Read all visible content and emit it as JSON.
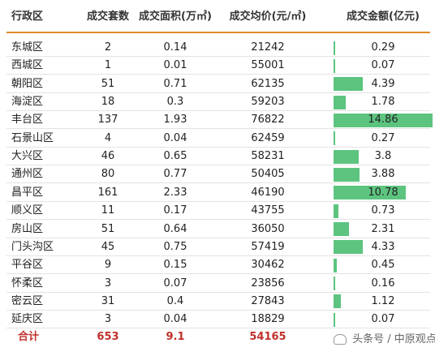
{
  "headers": {
    "district": "行政区",
    "units": "成交套数",
    "area": "成交面积(万㎡)",
    "avg_price": "成交均价(元/㎡)",
    "amount": "成交金额(亿元)"
  },
  "rows": [
    {
      "district": "东城区",
      "units": "2",
      "area": "0.14",
      "avg_price": "21242",
      "amount": "0.29",
      "amount_value": 0.29
    },
    {
      "district": "西城区",
      "units": "1",
      "area": "0.01",
      "avg_price": "55001",
      "amount": "0.07",
      "amount_value": 0.07
    },
    {
      "district": "朝阳区",
      "units": "51",
      "area": "0.71",
      "avg_price": "62135",
      "amount": "4.39",
      "amount_value": 4.39
    },
    {
      "district": "海淀区",
      "units": "18",
      "area": "0.3",
      "avg_price": "59203",
      "amount": "1.78",
      "amount_value": 1.78
    },
    {
      "district": "丰台区",
      "units": "137",
      "area": "1.93",
      "avg_price": "76822",
      "amount": "14.86",
      "amount_value": 14.86
    },
    {
      "district": "石景山区",
      "units": "4",
      "area": "0.04",
      "avg_price": "62459",
      "amount": "0.27",
      "amount_value": 0.27
    },
    {
      "district": "大兴区",
      "units": "46",
      "area": "0.65",
      "avg_price": "58231",
      "amount": "3.8",
      "amount_value": 3.8
    },
    {
      "district": "通州区",
      "units": "80",
      "area": "0.77",
      "avg_price": "50405",
      "amount": "3.88",
      "amount_value": 3.88
    },
    {
      "district": "昌平区",
      "units": "161",
      "area": "2.33",
      "avg_price": "46190",
      "amount": "10.78",
      "amount_value": 10.78
    },
    {
      "district": "顺义区",
      "units": "11",
      "area": "0.17",
      "avg_price": "43755",
      "amount": "0.73",
      "amount_value": 0.73
    },
    {
      "district": "房山区",
      "units": "51",
      "area": "0.64",
      "avg_price": "36050",
      "amount": "2.31",
      "amount_value": 2.31
    },
    {
      "district": "门头沟区",
      "units": "45",
      "area": "0.75",
      "avg_price": "57419",
      "amount": "4.33",
      "amount_value": 4.33
    },
    {
      "district": "平谷区",
      "units": "9",
      "area": "0.15",
      "avg_price": "30462",
      "amount": "0.45",
      "amount_value": 0.45
    },
    {
      "district": "怀柔区",
      "units": "3",
      "area": "0.07",
      "avg_price": "23856",
      "amount": "0.16",
      "amount_value": 0.16
    },
    {
      "district": "密云区",
      "units": "31",
      "area": "0.4",
      "avg_price": "27843",
      "amount": "1.12",
      "amount_value": 1.12
    },
    {
      "district": "延庆区",
      "units": "3",
      "area": "0.04",
      "avg_price": "18829",
      "amount": "0.07",
      "amount_value": 0.07
    }
  ],
  "total": {
    "district": "合计",
    "units": "653",
    "area": "9.1",
    "avg_price": "54165"
  },
  "watermark": "头条号 / 中原观点",
  "colors": {
    "bar": "#5cc47f",
    "total_text": "#c0302a",
    "header_rule": "#e08a2e",
    "row_rule": "#e3e3e3"
  }
}
